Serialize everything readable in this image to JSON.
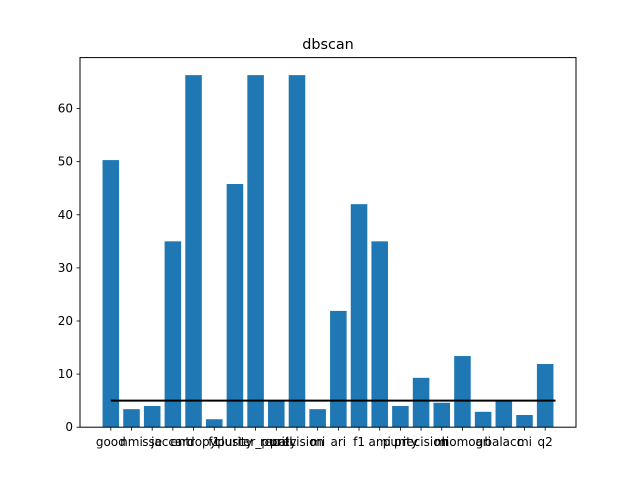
{
  "chart_data": {
    "type": "bar",
    "title": "dbscan",
    "xlabel": "",
    "ylabel": "",
    "categories": [
      "good",
      "nmi",
      "sse",
      "jaccard",
      "entropy",
      "f1",
      "purity",
      "cluster_purity",
      "recall",
      "precision",
      "mi",
      "ari",
      "f1",
      "ami",
      "purity",
      "precision",
      "mi",
      "homog",
      "ari",
      "balacc",
      "mi",
      "q2"
    ],
    "values": [
      50.3,
      3.4,
      4.0,
      35.0,
      66.3,
      1.5,
      45.8,
      66.3,
      5.0,
      66.3,
      3.4,
      21.9,
      42.0,
      35.0,
      4.0,
      9.3,
      4.6,
      13.4,
      2.9,
      5.0,
      2.3,
      11.9
    ],
    "ylim": [
      0,
      69.6
    ],
    "yticks": [
      0,
      10,
      20,
      30,
      40,
      50,
      60
    ],
    "threshold": 5,
    "colors": {
      "bar": "#1f77b4",
      "line": "#000000",
      "axis": "#000000"
    },
    "grid": false,
    "legend": "none"
  }
}
